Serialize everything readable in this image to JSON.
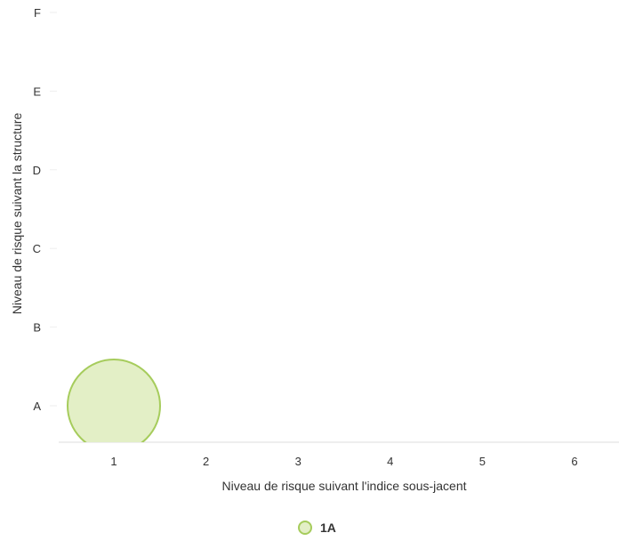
{
  "chart_data": {
    "type": "scatter",
    "title": "",
    "xlabel": "Niveau de risque suivant l'indice sous-jacent",
    "ylabel": "Niveau de risque suivant la structure",
    "x_categories": [
      "1",
      "2",
      "3",
      "4",
      "5",
      "6"
    ],
    "y_categories": [
      "A",
      "B",
      "C",
      "D",
      "E",
      "F"
    ],
    "grid": false,
    "legend_position": "bottom",
    "series": [
      {
        "name": "1A",
        "color": "#a6cc5c",
        "fill": "#e3efc6",
        "points": [
          {
            "x": "1",
            "y": "A"
          }
        ]
      }
    ]
  }
}
